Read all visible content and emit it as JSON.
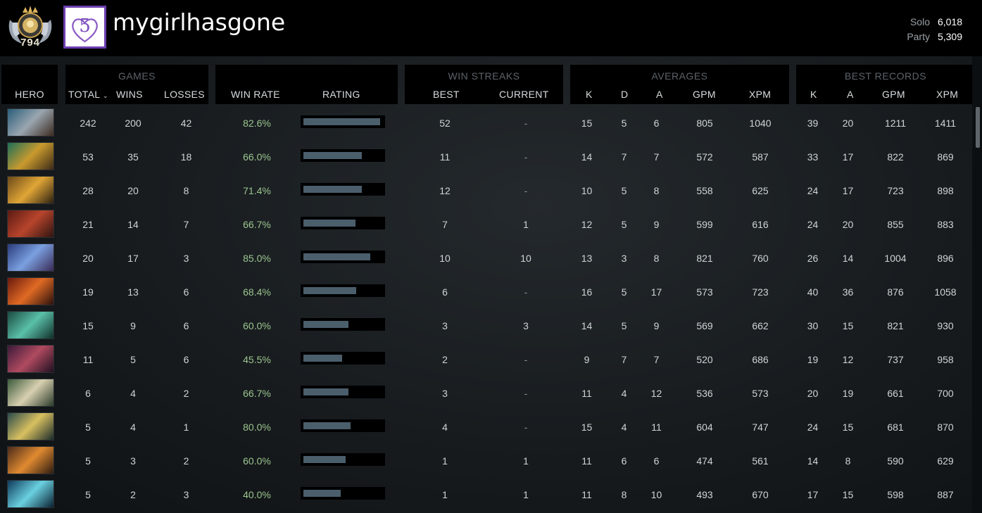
{
  "profile": {
    "rank_number": "794",
    "username": "mygirlhasgone",
    "mmr": [
      {
        "label": "Solo",
        "value": "6,018"
      },
      {
        "label": "Party",
        "value": "5,309"
      }
    ]
  },
  "headers": {
    "hero": "HERO",
    "games_group": "GAMES",
    "total": "TOTAL",
    "wins": "WINS",
    "losses": "LOSSES",
    "win_rate": "WIN RATE",
    "rating": "RATING",
    "win_streaks_group": "WIN STREAKS",
    "best": "BEST",
    "current": "CURRENT",
    "averages_group": "AVERAGES",
    "avg_k": "K",
    "avg_d": "D",
    "avg_a": "A",
    "avg_gpm": "GPM",
    "avg_xpm": "XPM",
    "best_records_group": "BEST RECORDS",
    "best_k": "K",
    "best_a": "A",
    "best_gpm": "GPM",
    "best_xpm": "XPM"
  },
  "rows": [
    {
      "hero_icon": "hero-portrait-1",
      "total": "242",
      "wins": "200",
      "losses": "42",
      "win_rate": "82.6%",
      "rating": 0.97,
      "best": "52",
      "current": "-",
      "k": "15",
      "d": "5",
      "a": "6",
      "gpm": "805",
      "xpm": "1040",
      "best_k": "39",
      "best_a": "20",
      "best_gpm": "1211",
      "best_xpm": "1411"
    },
    {
      "hero_icon": "hero-portrait-2",
      "total": "53",
      "wins": "35",
      "losses": "18",
      "win_rate": "66.0%",
      "rating": 0.74,
      "best": "11",
      "current": "-",
      "k": "14",
      "d": "7",
      "a": "7",
      "gpm": "572",
      "xpm": "587",
      "best_k": "33",
      "best_a": "17",
      "best_gpm": "822",
      "best_xpm": "869"
    },
    {
      "hero_icon": "hero-portrait-3",
      "total": "28",
      "wins": "20",
      "losses": "8",
      "win_rate": "71.4%",
      "rating": 0.74,
      "best": "12",
      "current": "-",
      "k": "10",
      "d": "5",
      "a": "8",
      "gpm": "558",
      "xpm": "625",
      "best_k": "24",
      "best_a": "17",
      "best_gpm": "723",
      "best_xpm": "898"
    },
    {
      "hero_icon": "hero-portrait-4",
      "total": "21",
      "wins": "14",
      "losses": "7",
      "win_rate": "66.7%",
      "rating": 0.66,
      "best": "7",
      "current": "1",
      "k": "12",
      "d": "5",
      "a": "9",
      "gpm": "599",
      "xpm": "616",
      "best_k": "24",
      "best_a": "20",
      "best_gpm": "855",
      "best_xpm": "883"
    },
    {
      "hero_icon": "hero-portrait-5",
      "total": "20",
      "wins": "17",
      "losses": "3",
      "win_rate": "85.0%",
      "rating": 0.85,
      "best": "10",
      "current": "10",
      "k": "13",
      "d": "3",
      "a": "8",
      "gpm": "821",
      "xpm": "760",
      "best_k": "26",
      "best_a": "14",
      "best_gpm": "1004",
      "best_xpm": "896"
    },
    {
      "hero_icon": "hero-portrait-6",
      "total": "19",
      "wins": "13",
      "losses": "6",
      "win_rate": "68.4%",
      "rating": 0.67,
      "best": "6",
      "current": "-",
      "k": "16",
      "d": "5",
      "a": "17",
      "gpm": "573",
      "xpm": "723",
      "best_k": "40",
      "best_a": "36",
      "best_gpm": "876",
      "best_xpm": "1058"
    },
    {
      "hero_icon": "hero-portrait-7",
      "total": "15",
      "wins": "9",
      "losses": "6",
      "win_rate": "60.0%",
      "rating": 0.57,
      "best": "3",
      "current": "3",
      "k": "14",
      "d": "5",
      "a": "9",
      "gpm": "569",
      "xpm": "662",
      "best_k": "30",
      "best_a": "15",
      "best_gpm": "821",
      "best_xpm": "930"
    },
    {
      "hero_icon": "hero-portrait-8",
      "total": "11",
      "wins": "5",
      "losses": "6",
      "win_rate": "45.5%",
      "rating": 0.49,
      "best": "2",
      "current": "-",
      "k": "9",
      "d": "7",
      "a": "7",
      "gpm": "520",
      "xpm": "686",
      "best_k": "19",
      "best_a": "12",
      "best_gpm": "737",
      "best_xpm": "958"
    },
    {
      "hero_icon": "hero-portrait-9",
      "total": "6",
      "wins": "4",
      "losses": "2",
      "win_rate": "66.7%",
      "rating": 0.57,
      "best": "3",
      "current": "-",
      "k": "11",
      "d": "4",
      "a": "12",
      "gpm": "536",
      "xpm": "573",
      "best_k": "20",
      "best_a": "19",
      "best_gpm": "661",
      "best_xpm": "700"
    },
    {
      "hero_icon": "hero-portrait-10",
      "total": "5",
      "wins": "4",
      "losses": "1",
      "win_rate": "80.0%",
      "rating": 0.6,
      "best": "4",
      "current": "-",
      "k": "15",
      "d": "4",
      "a": "11",
      "gpm": "604",
      "xpm": "747",
      "best_k": "24",
      "best_a": "15",
      "best_gpm": "681",
      "best_xpm": "870"
    },
    {
      "hero_icon": "hero-portrait-11",
      "total": "5",
      "wins": "3",
      "losses": "2",
      "win_rate": "60.0%",
      "rating": 0.54,
      "best": "1",
      "current": "1",
      "k": "11",
      "d": "6",
      "a": "6",
      "gpm": "474",
      "xpm": "561",
      "best_k": "14",
      "best_a": "8",
      "best_gpm": "590",
      "best_xpm": "629"
    },
    {
      "hero_icon": "hero-portrait-12",
      "total": "5",
      "wins": "2",
      "losses": "3",
      "win_rate": "40.0%",
      "rating": 0.47,
      "best": "1",
      "current": "1",
      "k": "11",
      "d": "8",
      "a": "10",
      "gpm": "493",
      "xpm": "670",
      "best_k": "17",
      "best_a": "15",
      "best_gpm": "598",
      "best_xpm": "887"
    }
  ],
  "colors": {
    "background": "#1b1f22",
    "header_bg": "#000000",
    "win_rate": "#9cc58f",
    "rating_bar": "#4b5e6c",
    "avatar_border": "#6e3fb1"
  }
}
